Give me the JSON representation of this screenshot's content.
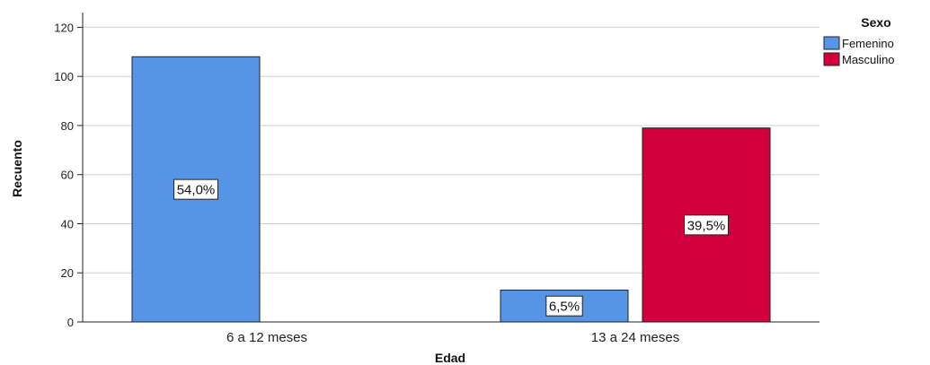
{
  "chart_data": {
    "type": "bar",
    "title": "",
    "xlabel": "Edad",
    "ylabel": "Recuento",
    "categories": [
      "6 a 12 meses",
      "13 a 24 meses"
    ],
    "series": [
      {
        "name": "Femenino",
        "values": [
          108,
          13
        ],
        "labels": [
          "54,0%",
          "6,5%"
        ],
        "color": "#5694e6"
      },
      {
        "name": "Masculino",
        "values": [
          0,
          79
        ],
        "labels": [
          "",
          "39,5%"
        ],
        "color": "#d2003c"
      }
    ],
    "ylim": [
      0,
      126
    ],
    "yticks": [
      0,
      20,
      40,
      60,
      80,
      100,
      120
    ],
    "grid": true,
    "legend": {
      "title": "Sexo",
      "placement": "top-right"
    }
  }
}
